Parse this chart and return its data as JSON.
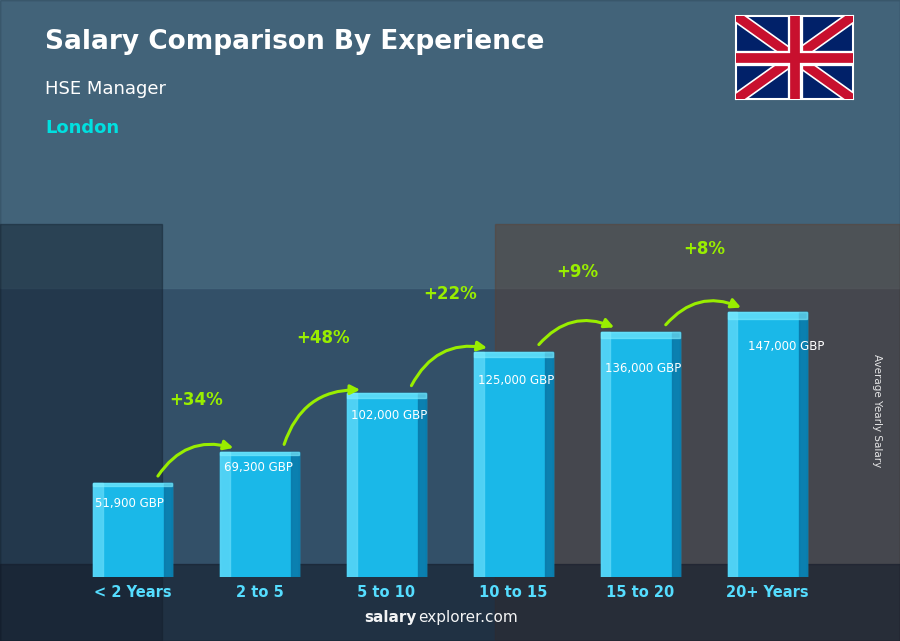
{
  "title": "Salary Comparison By Experience",
  "subtitle1": "HSE Manager",
  "subtitle2": "London",
  "ylabel": "Average Yearly Salary",
  "categories": [
    "< 2 Years",
    "2 to 5",
    "5 to 10",
    "10 to 15",
    "15 to 20",
    "20+ Years"
  ],
  "values": [
    51900,
    69300,
    102000,
    125000,
    136000,
    147000
  ],
  "salary_labels": [
    "51,900 GBP",
    "69,300 GBP",
    "102,000 GBP",
    "125,000 GBP",
    "136,000 GBP",
    "147,000 GBP"
  ],
  "pct_labels": [
    "+34%",
    "+48%",
    "+22%",
    "+9%",
    "+8%"
  ],
  "bar_color_main": "#1ab8e8",
  "bar_color_light": "#5dd8f8",
  "bar_color_dark": "#0a7aaa",
  "bar_color_side": "#0e9ac8",
  "title_color": "#ffffff",
  "subtitle1_color": "#ffffff",
  "subtitle2_color": "#00e0e0",
  "salary_label_color": "#ffffff",
  "pct_color": "#99ee00",
  "arrow_color": "#99ee00",
  "xtick_color": "#55ddff",
  "watermark_bold": "salary",
  "watermark_normal": "explorer.com",
  "ylabel_label": "Average Yearly Salary",
  "ylim": [
    0,
    185000
  ],
  "bar_width": 0.62
}
